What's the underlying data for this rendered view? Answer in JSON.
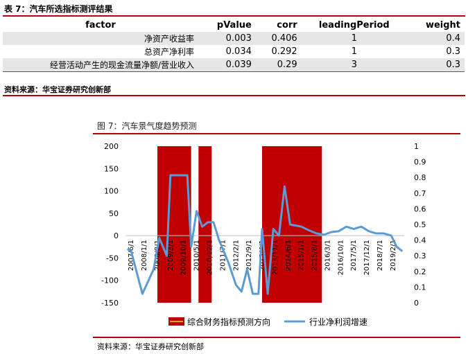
{
  "table": {
    "caption": "表 7：汽车所选指标测评结果",
    "headers": [
      "factor",
      "pValue",
      "corr",
      "leadingPeriod",
      "weight"
    ],
    "rows": [
      {
        "factor": "净资产收益率",
        "pValue": "0.003",
        "corr": "0.406",
        "leadingPeriod": "1",
        "weight": "0.4"
      },
      {
        "factor": "总资产净利率",
        "pValue": "0.034",
        "corr": "0.292",
        "leadingPeriod": "1",
        "weight": "0.3"
      },
      {
        "factor": "经营活动产生的现金流量净额/营业收入",
        "pValue": "0.039",
        "corr": "0.29",
        "leadingPeriod": "3",
        "weight": "0.3"
      }
    ],
    "source": "资料来源：华宝证券研究创新部"
  },
  "chart": {
    "caption": "图 7：汽车景气度趋势预测",
    "source": "资料来源：华宝证券研究创新部",
    "colors": {
      "signal": "#c00000",
      "line": "#5b9bd5",
      "legend_mark": "#e8b000"
    }
  },
  "chart_data": {
    "type": "line",
    "title": "",
    "legend": [
      "综合财务指标预测方向",
      "行业净利润增速"
    ],
    "legend_position": "bottom",
    "left_axis": {
      "min": -150,
      "max": 200,
      "ticks": [
        "200",
        "150",
        "100",
        "50",
        "0",
        "-50",
        "-100",
        "-150"
      ]
    },
    "right_axis": {
      "min": 0,
      "max": 1,
      "ticks": [
        "1",
        "0.9",
        "0.8",
        "0.7",
        "0.6",
        "0.5",
        "0.4",
        "0.3",
        "0.2",
        "0.1",
        "0"
      ]
    },
    "x_ticks": [
      "2007/6/1",
      "2008/1/1",
      "2008/8/1",
      "2009/3/1",
      "2009/10/1",
      "2010/5/1",
      "2010/12/1",
      "2011/7/1",
      "2012/2/1",
      "2012/9/1",
      "2013/4/1",
      "2013/11/1",
      "2014/6/1",
      "2015/1/1",
      "2015/8/1",
      "2016/3/1",
      "2016/10/1",
      "2017/5/1",
      "2017/12/1",
      "2018/7/1",
      "2019/2/1"
    ],
    "x_range": [
      "2007/3/1",
      "2019/8/1"
    ],
    "signal_periods": [
      {
        "start": "2008/8/1",
        "end": "2010/2/1",
        "value": 1
      },
      {
        "start": "2010/6/1",
        "end": "2011/1/1",
        "value": 1
      },
      {
        "start": "2013/4/1",
        "end": "2015/12/1",
        "value": 1
      }
    ],
    "series": [
      {
        "name": "行业净利润增速",
        "axis": "left",
        "points": [
          [
            "2007/4/1",
            -30
          ],
          [
            "2007/6/1",
            -35
          ],
          [
            "2007/12/1",
            -130
          ],
          [
            "2008/6/1",
            -75
          ],
          [
            "2008/9/1",
            -5
          ],
          [
            "2009/1/1",
            -45
          ],
          [
            "2009/3/1",
            135
          ],
          [
            "2009/8/1",
            135
          ],
          [
            "2009/12/1",
            135
          ],
          [
            "2010/2/1",
            -25
          ],
          [
            "2010/5/1",
            55
          ],
          [
            "2010/8/1",
            20
          ],
          [
            "2010/11/1",
            30
          ],
          [
            "2011/2/1",
            30
          ],
          [
            "2011/5/1",
            -10
          ],
          [
            "2011/10/1",
            -60
          ],
          [
            "2012/2/1",
            -110
          ],
          [
            "2012/5/1",
            -125
          ],
          [
            "2012/8/1",
            -75
          ],
          [
            "2012/11/1",
            -130
          ],
          [
            "2013/2/1",
            -130
          ],
          [
            "2013/4/1",
            15
          ],
          [
            "2013/7/1",
            -130
          ],
          [
            "2013/10/1",
            15
          ],
          [
            "2014/1/1",
            0
          ],
          [
            "2014/4/1",
            110
          ],
          [
            "2014/7/1",
            25
          ],
          [
            "2015/1/1",
            20
          ],
          [
            "2015/5/1",
            12
          ],
          [
            "2015/9/1",
            5
          ],
          [
            "2016/1/1",
            2
          ],
          [
            "2016/5/1",
            8
          ],
          [
            "2016/9/1",
            10
          ],
          [
            "2017/1/1",
            20
          ],
          [
            "2017/5/1",
            15
          ],
          [
            "2017/9/1",
            20
          ],
          [
            "2018/1/1",
            10
          ],
          [
            "2018/5/1",
            5
          ],
          [
            "2018/9/1",
            5
          ],
          [
            "2019/1/1",
            0
          ],
          [
            "2019/4/1",
            -25
          ],
          [
            "2019/7/1",
            -35
          ]
        ]
      }
    ]
  }
}
